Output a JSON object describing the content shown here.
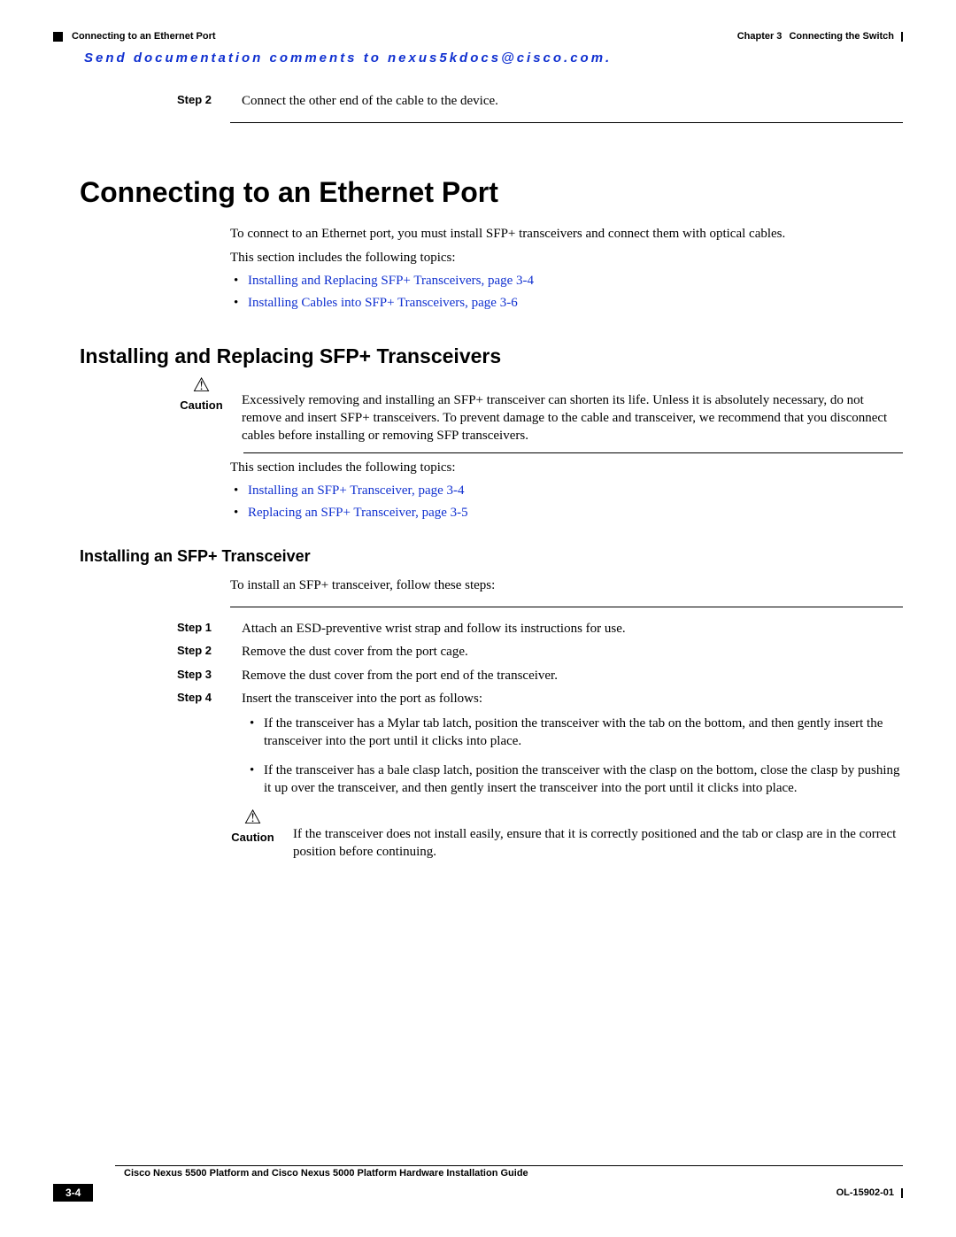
{
  "header": {
    "section_title": "Connecting to an Ethernet Port",
    "chapter_label": "Chapter 3",
    "chapter_title": "Connecting the Switch"
  },
  "comment_line": "Send documentation comments to nexus5kdocs@cisco.com.",
  "top_step": {
    "label": "Step 2",
    "text": "Connect the other end of the cable to the device."
  },
  "h1": "Connecting to an Ethernet Port",
  "intro_para1": "To connect to an Ethernet port, you must install SFP+ transceivers and connect them with optical cables.",
  "intro_para2": "This section includes the following topics:",
  "intro_links": [
    "Installing and Replacing SFP+ Transceivers, page 3-4",
    "Installing Cables into SFP+ Transceivers, page 3-6"
  ],
  "h2": "Installing and Replacing SFP+ Transceivers",
  "caution1": {
    "label": "Caution",
    "triangle": "⚠",
    "text": "Excessively removing and installing an SFP+ transceiver can shorten its life. Unless it is absolutely necessary, do not remove and insert SFP+ transceivers. To prevent damage to the cable and transceiver, we recommend that you disconnect cables before installing or removing SFP transceivers."
  },
  "sub_para": "This section includes the following topics:",
  "sub_links": [
    "Installing an SFP+ Transceiver, page 3-4",
    "Replacing an SFP+ Transceiver, page 3-5"
  ],
  "h3": "Installing an SFP+ Transceiver",
  "install_intro": "To install an SFP+ transceiver, follow these steps:",
  "steps": [
    {
      "label": "Step 1",
      "text": "Attach an ESD-preventive wrist strap and follow its instructions for use."
    },
    {
      "label": "Step 2",
      "text": "Remove the dust cover from the port cage."
    },
    {
      "label": "Step 3",
      "text": "Remove the dust cover from the port end of the transceiver."
    },
    {
      "label": "Step 4",
      "text": "Insert the transceiver into the port as follows:"
    }
  ],
  "step4_bullets": [
    "If the transceiver has a Mylar tab latch, position the transceiver with the tab on the bottom, and then gently insert the transceiver into the port until it clicks into place.",
    "If the transceiver has a bale clasp latch, position the transceiver with the clasp on the bottom, close the clasp by pushing it up over the transceiver, and then gently insert the transceiver into the port until it clicks into place."
  ],
  "caution2": {
    "label": "Caution",
    "triangle": "⚠",
    "text": "If the transceiver does not install easily, ensure that it is correctly positioned and the tab or clasp are in the correct position before continuing."
  },
  "footer": {
    "guide_title": "Cisco Nexus 5500 Platform and Cisco Nexus 5000 Platform Hardware Installation Guide",
    "page_number": "3-4",
    "doc_id": "OL-15902-01"
  }
}
